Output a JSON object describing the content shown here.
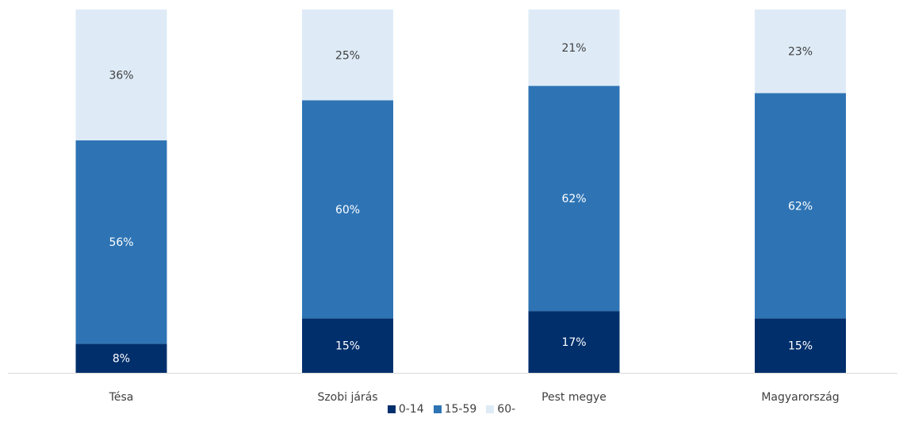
{
  "chart_data": {
    "type": "bar",
    "stacked": true,
    "categories": [
      "Tésa",
      "Szobi járás",
      "Pest megye",
      "Magyarország"
    ],
    "series": [
      {
        "name": "0-14",
        "color": "#002f6c",
        "values": [
          8,
          15,
          17,
          15
        ],
        "labels": [
          "8%",
          "15%",
          "17%",
          "15%"
        ],
        "label_color": "#ffffff"
      },
      {
        "name": "15-59",
        "color": "#2e74b5",
        "values": [
          56,
          60,
          62,
          62
        ],
        "labels": [
          "56%",
          "60%",
          "62%",
          "62%"
        ],
        "label_color": "#ffffff"
      },
      {
        "name": "60-",
        "color": "#deebf7",
        "values": [
          36,
          25,
          21,
          23
        ],
        "labels": [
          "36%",
          "25%",
          "21%",
          "23%"
        ],
        "label_color": "#404040"
      }
    ],
    "ylim": [
      0,
      100
    ],
    "grid": false,
    "legend_position": "bottom"
  }
}
